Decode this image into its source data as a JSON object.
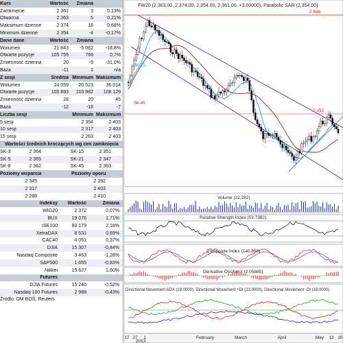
{
  "kurs_table": {
    "headers": [
      "Kurs",
      "Wartość",
      "Zmiana",
      ""
    ],
    "rows": [
      [
        "Zamknięcie",
        "2 361",
        "3",
        "0,13%"
      ],
      [
        "Otwarcia",
        "2 363",
        "5",
        "0,21%"
      ],
      [
        "Maksimum dzienne",
        "2 374",
        "16",
        "0,68%"
      ],
      [
        "Minimum dzienne",
        "2 354",
        "-4",
        "-0,17%"
      ]
    ]
  },
  "dane_table": {
    "headers": [
      "Dane dane",
      "Wartość",
      "Zmiana",
      ""
    ],
    "rows": [
      [
        "Wolumen",
        "21 843",
        "-5 062",
        "-18,8%"
      ],
      [
        "Otwarte pozycje",
        "105 755",
        "766",
        "0,7%"
      ],
      [
        "Zmienność dzienna",
        "20",
        "-9",
        "-31,0%"
      ],
      [
        "Baza",
        "-11",
        "1",
        "n/a"
      ]
    ]
  },
  "sesji_table": {
    "headers": [
      "Z sesji",
      "Średnia",
      "Minimum",
      "Maksimum"
    ],
    "rows": [
      [
        "Wolumen",
        "24 059",
        "20 523",
        "36 014"
      ],
      [
        "Otwarte pozycje",
        "105 893",
        "103 982",
        "108 129"
      ],
      [
        "Zmienność dzienna",
        "28",
        "20",
        "45"
      ],
      [
        "Baza",
        "-12",
        "-18",
        "-7"
      ]
    ]
  },
  "liczba_table": {
    "headers": [
      "Liczba sesji",
      "",
      "Minimum",
      "Maksimum"
    ],
    "rows": [
      [
        "5 sesji",
        "",
        "2 354",
        "2 403"
      ],
      [
        "10 sesji",
        "",
        "2 317",
        "2 403"
      ],
      [
        "15 sesji",
        "",
        "2 263",
        "2 403"
      ]
    ]
  },
  "srednie": {
    "title": "Wartości średnich kroczących wg cen zamknięcia",
    "rows": [
      [
        "SK-3",
        "2 364",
        "SK-15",
        "2 351"
      ],
      [
        "SK-5",
        "2 365",
        "SK-21",
        "2 347"
      ],
      [
        "SK-8",
        "2 362",
        "SK-45",
        "2 363"
      ]
    ]
  },
  "poziomy": {
    "headers": [
      "Poziomy wsparcia",
      "Poziomy oporu"
    ],
    "rows": [
      [
        "2 345",
        "2 392"
      ],
      [
        "2 317",
        "2 403"
      ],
      [
        "2 288",
        "2 410"
      ]
    ]
  },
  "indeksy": {
    "headers": [
      "Indeksy",
      "Wartość",
      "Zmiana"
    ],
    "rows": [
      [
        "WIG20",
        "2 372",
        "0,07%"
      ],
      [
        "BUX",
        "19 076",
        "1,71%"
      ],
      [
        "ISE100",
        "93 179",
        "2,18%"
      ],
      [
        "XetraDAX",
        "8 531",
        "0,69%"
      ],
      [
        "CAC40",
        "4 051",
        "0,37%"
      ],
      [
        "DJIA",
        "15 307",
        "-0,84%"
      ],
      [
        "Nasdaq Composite",
        "3 463",
        "-1,28%"
      ],
      [
        "S&P500",
        "1 655",
        "-0,83%"
      ],
      [
        "Nikkei",
        "15 627",
        "1,60%"
      ]
    ]
  },
  "futures": {
    "headers": [
      "Futures",
      "",
      ""
    ],
    "rows": [
      [
        "DJIA Futures",
        "15 240",
        "-0,52%"
      ],
      [
        "Nasdaq 100 Futures",
        "2 988",
        "-0,43%"
      ]
    ]
  },
  "source": "Źródło: DM BOŚ, Reuters",
  "chart_data": {
    "type": "line",
    "title": "FW20 (2,363.00, 2,374.00, 2,354.00, 2,361.00, +3.00000), Parabolic SAR (2,354.00)",
    "price_levels": [
      2686,
      2392
    ],
    "price_level_labels": [
      "2 686",
      "2 392"
    ],
    "series_labels": [
      "SK-15",
      "SK-45"
    ],
    "panels": [
      {
        "name": "Volume",
        "label": "Volume (22,282)"
      },
      {
        "name": "RSI",
        "label": "Relative Strength Index (53.7382)"
      },
      {
        "name": "Composite",
        "label": "Composite Index (140.858)"
      },
      {
        "name": "Derivative",
        "label": "Derivative Oscillator (2.05885)"
      },
      {
        "name": "ADX",
        "label": "Directional Movement ADX (19.0000), Directional Movement +DI (23.0000), Directional Movement -DI (18.0000)"
      }
    ],
    "x_labels": [
      "17",
      "27",
      "1",
      "2013",
      "February",
      "March",
      "April",
      "May",
      "13",
      "20"
    ],
    "colors": {
      "price": "#000000",
      "sma_fast": "#1aa0d8",
      "sma_slow": "#8a2a1a",
      "channel": "#1e2aa0",
      "level": "#cc2222",
      "rsi": "#000000",
      "composite": "#cc2222",
      "derivative": "#e06060",
      "adx": "#1e2aa0",
      "di_plus": "#2a9a2a",
      "di_minus": "#cc2222"
    }
  }
}
